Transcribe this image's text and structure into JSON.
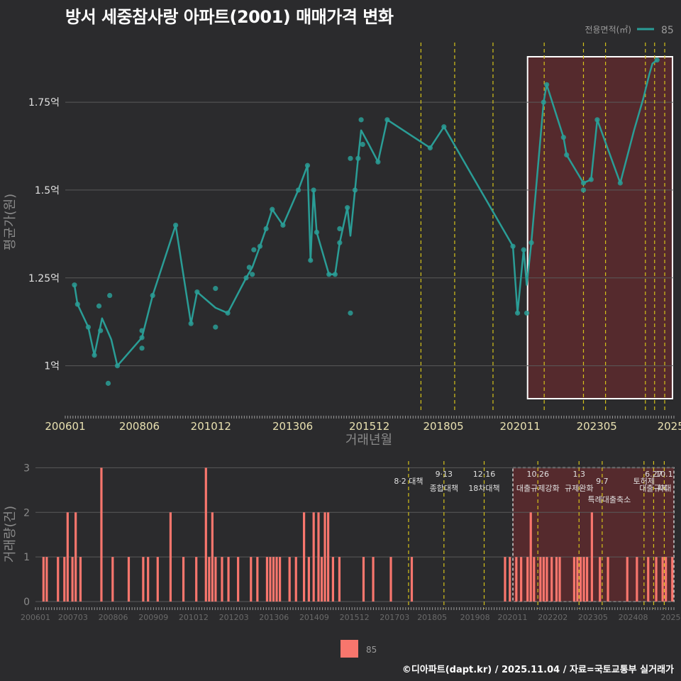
{
  "title": "방서 세중참사랑 아파트(2001) 매매가격 변화",
  "footer": "©디아파트(dapt.kr) / 2025.11.04 / 자료=국토교통부 실거래가",
  "colors": {
    "line": "#2a9d96",
    "bar": "#f8766d",
    "policy": "#d4c21a",
    "highlight_fill": "#5a2a2e",
    "grid": "#5a5a5a"
  },
  "chart_data": [
    {
      "type": "line",
      "title": "방서 세중참사랑 아파트(2001) 매매가격 변화",
      "xlabel": "거래년월",
      "ylabel": "평균가(원)",
      "legend": {
        "title": "전용면적(㎡)",
        "label": "85",
        "position": "top-right"
      },
      "xlim": [
        2006.0,
        2025.85
      ],
      "ylim": [
        0.87,
        1.95
      ],
      "x_ticks": [
        {
          "x": 2006.0,
          "label": "200601"
        },
        {
          "x": 2008.4167,
          "label": "200806"
        },
        {
          "x": 2010.75,
          "label": "201012"
        },
        {
          "x": 2013.4167,
          "label": "201306"
        },
        {
          "x": 2015.9167,
          "label": "201512"
        },
        {
          "x": 2018.3333,
          "label": "201805"
        },
        {
          "x": 2020.8333,
          "label": "202011"
        },
        {
          "x": 2023.3333,
          "label": "202305"
        },
        {
          "x": 2025.75,
          "label": "2025"
        }
      ],
      "y_ticks": [
        {
          "y": 1.0,
          "label": "1억"
        },
        {
          "y": 1.25,
          "label": "1.25억"
        },
        {
          "y": 1.5,
          "label": "1.5억"
        },
        {
          "y": 1.75,
          "label": "1.75억"
        }
      ],
      "series": [
        {
          "name": "85",
          "line": [
            [
              2006.3,
              1.23
            ],
            [
              2006.4,
              1.175
            ],
            [
              2006.75,
              1.11
            ],
            [
              2006.95,
              1.03
            ],
            [
              2007.2,
              1.135
            ],
            [
              2007.5,
              1.075
            ],
            [
              2007.7,
              1.0
            ],
            [
              2008.5,
              1.08
            ],
            [
              2008.85,
              1.2
            ],
            [
              2009.6,
              1.4
            ],
            [
              2010.1,
              1.12
            ],
            [
              2010.3,
              1.21
            ],
            [
              2010.9,
              1.165
            ],
            [
              2011.3,
              1.15
            ],
            [
              2011.9,
              1.25
            ],
            [
              2012.1,
              1.28
            ],
            [
              2012.35,
              1.34
            ],
            [
              2012.55,
              1.39
            ],
            [
              2012.75,
              1.445
            ],
            [
              2013.1,
              1.4
            ],
            [
              2013.6,
              1.5
            ],
            [
              2013.9,
              1.57
            ],
            [
              2014.0,
              1.3
            ],
            [
              2014.1,
              1.5
            ],
            [
              2014.2,
              1.38
            ],
            [
              2014.6,
              1.26
            ],
            [
              2014.8,
              1.26
            ],
            [
              2014.95,
              1.35
            ],
            [
              2015.2,
              1.45
            ],
            [
              2015.3,
              1.37
            ],
            [
              2015.45,
              1.5
            ],
            [
              2015.55,
              1.59
            ],
            [
              2015.65,
              1.67
            ],
            [
              2015.9,
              1.63
            ],
            [
              2016.2,
              1.58
            ],
            [
              2016.5,
              1.7
            ],
            [
              2017.9,
              1.62
            ],
            [
              2018.35,
              1.68
            ],
            [
              2020.6,
              1.34
            ],
            [
              2020.75,
              1.15
            ],
            [
              2020.95,
              1.33
            ],
            [
              2021.05,
              1.23
            ],
            [
              2021.2,
              1.35
            ],
            [
              2021.6,
              1.75
            ],
            [
              2021.7,
              1.8
            ],
            [
              2022.25,
              1.65
            ],
            [
              2022.35,
              1.6
            ],
            [
              2022.9,
              1.52
            ],
            [
              2023.15,
              1.53
            ],
            [
              2023.35,
              1.7
            ],
            [
              2024.1,
              1.52
            ],
            [
              2024.55,
              1.67
            ],
            [
              2024.85,
              1.76
            ],
            [
              2025.05,
              1.83
            ],
            [
              2025.15,
              1.86
            ],
            [
              2025.3,
              1.87
            ]
          ],
          "points": [
            [
              2006.3,
              1.23
            ],
            [
              2006.4,
              1.175
            ],
            [
              2006.75,
              1.11
            ],
            [
              2006.95,
              1.03
            ],
            [
              2007.1,
              1.17
            ],
            [
              2007.15,
              1.1
            ],
            [
              2007.45,
              1.2
            ],
            [
              2007.4,
              0.95
            ],
            [
              2007.7,
              1.0
            ],
            [
              2008.5,
              1.08
            ],
            [
              2008.5,
              1.05
            ],
            [
              2008.5,
              1.1
            ],
            [
              2008.85,
              1.2
            ],
            [
              2009.6,
              1.4
            ],
            [
              2010.1,
              1.12
            ],
            [
              2010.3,
              1.21
            ],
            [
              2010.9,
              1.22
            ],
            [
              2010.9,
              1.11
            ],
            [
              2011.3,
              1.15
            ],
            [
              2011.9,
              1.25
            ],
            [
              2012.0,
              1.28
            ],
            [
              2012.1,
              1.26
            ],
            [
              2012.15,
              1.33
            ],
            [
              2012.35,
              1.34
            ],
            [
              2012.55,
              1.39
            ],
            [
              2012.75,
              1.445
            ],
            [
              2013.1,
              1.4
            ],
            [
              2013.6,
              1.5
            ],
            [
              2013.9,
              1.57
            ],
            [
              2014.0,
              1.3
            ],
            [
              2014.1,
              1.5
            ],
            [
              2014.2,
              1.38
            ],
            [
              2014.6,
              1.26
            ],
            [
              2014.8,
              1.26
            ],
            [
              2014.95,
              1.35
            ],
            [
              2014.95,
              1.39
            ],
            [
              2015.2,
              1.45
            ],
            [
              2015.3,
              1.59
            ],
            [
              2015.3,
              1.15
            ],
            [
              2015.45,
              1.5
            ],
            [
              2015.55,
              1.59
            ],
            [
              2015.65,
              1.7
            ],
            [
              2015.7,
              1.63
            ],
            [
              2016.2,
              1.58
            ],
            [
              2016.5,
              1.7
            ],
            [
              2017.9,
              1.62
            ],
            [
              2018.35,
              1.68
            ],
            [
              2020.6,
              1.34
            ],
            [
              2020.75,
              1.15
            ],
            [
              2020.95,
              1.33
            ],
            [
              2021.05,
              1.15
            ],
            [
              2021.2,
              1.35
            ],
            [
              2021.6,
              1.75
            ],
            [
              2021.7,
              1.8
            ],
            [
              2022.25,
              1.65
            ],
            [
              2022.35,
              1.6
            ],
            [
              2022.9,
              1.52
            ],
            [
              2022.9,
              1.5
            ],
            [
              2023.15,
              1.53
            ],
            [
              2023.35,
              1.7
            ],
            [
              2024.1,
              1.52
            ],
            [
              2025.3,
              1.87
            ]
          ]
        }
      ],
      "policy_lines": [
        2017.6,
        2018.7,
        2019.95,
        2021.62,
        2022.9,
        2023.62,
        2024.92,
        2025.22,
        2025.55
      ],
      "highlight_range": [
        2020.8,
        2025.85
      ]
    },
    {
      "type": "bar",
      "ylabel": "거래량(건)",
      "legend": {
        "label": "85",
        "position": "bottom"
      },
      "xlim": [
        2006.0,
        2025.85
      ],
      "ylim": [
        0,
        3.15
      ],
      "y_ticks": [
        0,
        1,
        2,
        3
      ],
      "x_ticks": [
        {
          "x": 2006.0,
          "label": "200601"
        },
        {
          "x": 2007.1667,
          "label": "200703"
        },
        {
          "x": 2008.4167,
          "label": "200806"
        },
        {
          "x": 2009.6667,
          "label": "200909"
        },
        {
          "x": 2010.9167,
          "label": "201012"
        },
        {
          "x": 2012.1667,
          "label": "201203"
        },
        {
          "x": 2013.4167,
          "label": "201306"
        },
        {
          "x": 2014.6667,
          "label": "201409"
        },
        {
          "x": 2015.9167,
          "label": "201512"
        },
        {
          "x": 2017.1667,
          "label": "201703"
        },
        {
          "x": 2018.3333,
          "label": "201805"
        },
        {
          "x": 2019.6667,
          "label": "201908"
        },
        {
          "x": 2020.8333,
          "label": "202011"
        },
        {
          "x": 2022.0833,
          "label": "202202"
        },
        {
          "x": 2023.3333,
          "label": "202305"
        },
        {
          "x": 2024.5833,
          "label": "202408"
        },
        {
          "x": 2025.75,
          "label": "2025"
        }
      ],
      "bars": [
        [
          2006.25,
          1
        ],
        [
          2006.35,
          1
        ],
        [
          2006.7,
          1
        ],
        [
          2006.9,
          1
        ],
        [
          2007.0,
          2
        ],
        [
          2007.15,
          1
        ],
        [
          2007.25,
          2
        ],
        [
          2007.4,
          1
        ],
        [
          2008.05,
          3
        ],
        [
          2008.4,
          1
        ],
        [
          2008.9,
          1
        ],
        [
          2009.35,
          1
        ],
        [
          2009.5,
          1
        ],
        [
          2009.8,
          1
        ],
        [
          2010.2,
          2
        ],
        [
          2010.6,
          1
        ],
        [
          2011.0,
          1
        ],
        [
          2011.3,
          3
        ],
        [
          2011.4,
          1
        ],
        [
          2011.5,
          2
        ],
        [
          2011.6,
          1
        ],
        [
          2011.8,
          1
        ],
        [
          2012.0,
          1
        ],
        [
          2012.3,
          1
        ],
        [
          2012.7,
          1
        ],
        [
          2012.9,
          1
        ],
        [
          2013.2,
          1
        ],
        [
          2013.3,
          1
        ],
        [
          2013.4,
          1
        ],
        [
          2013.5,
          1
        ],
        [
          2013.6,
          1
        ],
        [
          2013.9,
          1
        ],
        [
          2014.1,
          1
        ],
        [
          2014.35,
          2
        ],
        [
          2014.5,
          1
        ],
        [
          2014.65,
          2
        ],
        [
          2014.8,
          2
        ],
        [
          2014.9,
          1
        ],
        [
          2015.0,
          2
        ],
        [
          2015.1,
          2
        ],
        [
          2015.25,
          1
        ],
        [
          2015.45,
          1
        ],
        [
          2016.2,
          1
        ],
        [
          2016.5,
          1
        ],
        [
          2017.05,
          1
        ],
        [
          2017.7,
          1
        ],
        [
          2020.6,
          1
        ],
        [
          2020.75,
          1
        ],
        [
          2020.95,
          1
        ],
        [
          2021.1,
          1
        ],
        [
          2021.3,
          1
        ],
        [
          2021.4,
          2
        ],
        [
          2021.5,
          1
        ],
        [
          2021.7,
          1
        ],
        [
          2021.8,
          1
        ],
        [
          2021.9,
          1
        ],
        [
          2022.05,
          1
        ],
        [
          2022.2,
          1
        ],
        [
          2022.3,
          1
        ],
        [
          2022.75,
          1
        ],
        [
          2022.85,
          1
        ],
        [
          2022.95,
          1
        ],
        [
          2023.05,
          1
        ],
        [
          2023.15,
          1
        ],
        [
          2023.3,
          2
        ],
        [
          2023.55,
          1
        ],
        [
          2023.8,
          1
        ],
        [
          2024.4,
          1
        ],
        [
          2024.7,
          1
        ],
        [
          2025.05,
          1
        ],
        [
          2025.3,
          1
        ],
        [
          2025.5,
          1
        ],
        [
          2025.6,
          1
        ],
        [
          2025.8,
          1
        ]
      ],
      "policy_lines": [
        2017.6,
        2018.7,
        2019.95,
        2021.62,
        2022.9,
        2023.62,
        2024.92,
        2025.22,
        2025.55
      ],
      "highlight_range": [
        2020.8,
        2025.85
      ],
      "annotations": [
        {
          "x": 2017.6,
          "line1": "",
          "line2": "8·2 대책"
        },
        {
          "x": 2018.7,
          "line1": "9·13",
          "line2": "종합대책"
        },
        {
          "x": 2019.95,
          "line1": "12·16",
          "line2": "18차대책"
        },
        {
          "x": 2021.62,
          "line1": "10.26",
          "line2": "대출규제강화"
        },
        {
          "x": 2022.9,
          "line1": "1.3",
          "line2": "규제완화"
        },
        {
          "x": 2023.62,
          "line1": "",
          "line2": "9.7"
        },
        {
          "x": 2023.62,
          "line1": "",
          "line2": "특례대출축소"
        },
        {
          "x": 2024.92,
          "line1": "",
          "line2": "토허제"
        },
        {
          "x": 2025.22,
          "line1": "6.27",
          "line2": "대출규제"
        },
        {
          "x": 2025.55,
          "line1": "10.1",
          "line2": "확대"
        }
      ]
    }
  ]
}
